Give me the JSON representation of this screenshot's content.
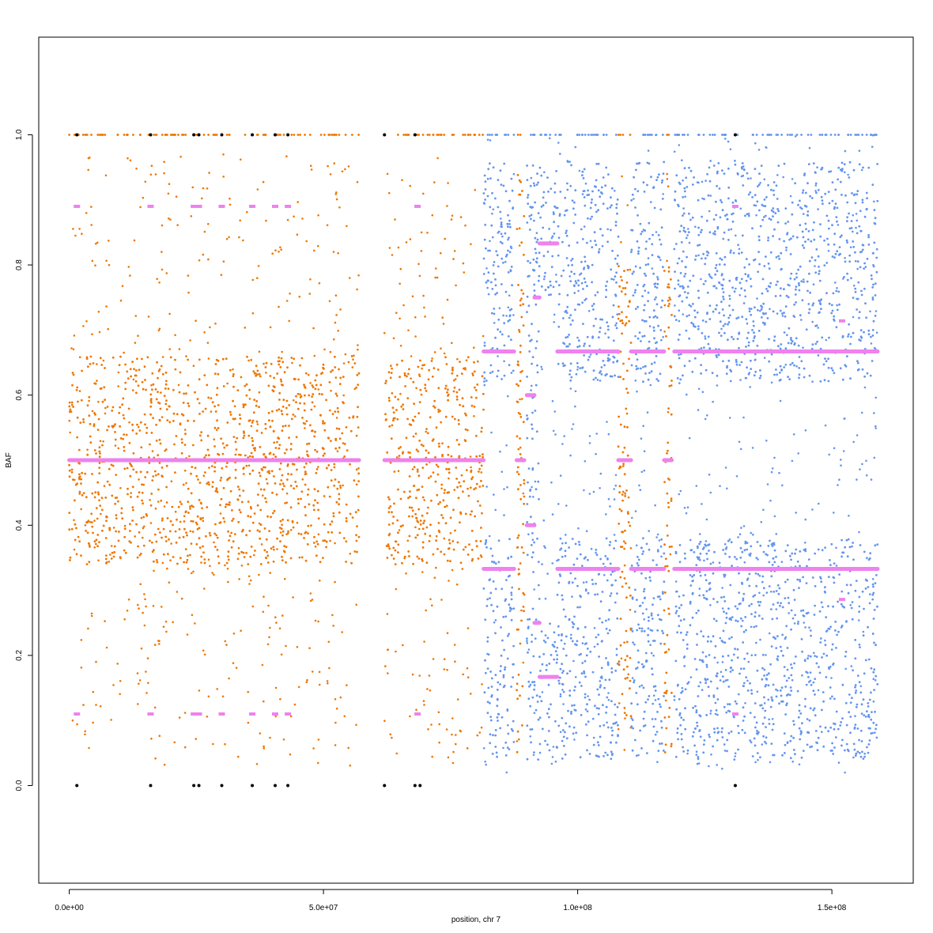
{
  "chart_data": {
    "type": "scatter",
    "title": "",
    "xlabel": "position, chr 7",
    "ylabel": "BAF",
    "xlim": [
      -6000000,
      166000000
    ],
    "ylim": [
      -0.15,
      1.15
    ],
    "x_ticks": [
      0,
      50000000,
      100000000,
      150000000
    ],
    "x_tick_labels": [
      "0.0e+00",
      "5.0e+07",
      "1.0e+08",
      "1.5e+08"
    ],
    "y_ticks": [
      0.0,
      0.2,
      0.4,
      0.6,
      0.8,
      1.0
    ],
    "y_tick_labels": [
      "0.0",
      "0.2",
      "0.4",
      "0.6",
      "0.8",
      "1.0"
    ],
    "grid": false,
    "legend": "none",
    "colors": {
      "balanced": "#ee7700",
      "imbalanced": "#6495ed",
      "segment": "#ee82ee",
      "homozygous": "#000000"
    },
    "series": [
      {
        "color": "balanced",
        "regions": [
          {
            "x": [
              0,
              57000000
            ],
            "bands": [
              [
                0.34,
                0.66
              ]
            ],
            "noise": [
              0.03,
              0.97
            ]
          },
          {
            "x": [
              62000000,
              81500000
            ],
            "bands": [
              [
                0.34,
                0.66
              ]
            ],
            "noise": [
              0.03,
              0.97
            ]
          },
          {
            "x": [
              88000000,
              89500000
            ],
            "bands": [
              [
                0.05,
                0.95
              ]
            ],
            "noise": [
              0.05,
              0.95
            ]
          },
          {
            "x": [
              108000000,
              110500000
            ],
            "bands": [
              [
                0.1,
                0.8
              ]
            ],
            "noise": [
              0.05,
              0.95
            ]
          },
          {
            "x": [
              117000000,
              118500000
            ],
            "bands": [
              [
                0.05,
                0.8
              ]
            ],
            "noise": [
              0.05,
              0.95
            ]
          }
        ]
      },
      {
        "color": "imbalanced",
        "regions": [
          {
            "x": [
              81500000,
              87500000
            ],
            "bands": [
              [
                0.04,
                0.38
              ],
              [
                0.62,
                0.96
              ]
            ],
            "noise": [
              0.02,
              1.0
            ]
          },
          {
            "x": [
              90000000,
              92500000
            ],
            "bands": [
              [
                0.04,
                0.96
              ]
            ],
            "noise": [
              0.02,
              1.0
            ]
          },
          {
            "x": [
              92500000,
              96000000
            ],
            "bands": [
              [
                0.05,
                0.25
              ],
              [
                0.75,
                0.95
              ]
            ],
            "noise": [
              0.02,
              1.0
            ]
          },
          {
            "x": [
              96000000,
              108000000
            ],
            "bands": [
              [
                0.04,
                0.38
              ],
              [
                0.62,
                0.96
              ]
            ],
            "noise": [
              0.02,
              1.0
            ]
          },
          {
            "x": [
              110500000,
              117000000
            ],
            "bands": [
              [
                0.04,
                0.38
              ],
              [
                0.62,
                0.96
              ]
            ],
            "noise": [
              0.02,
              1.0
            ]
          },
          {
            "x": [
              119000000,
              159000000
            ],
            "bands": [
              [
                0.04,
                0.38
              ],
              [
                0.62,
                0.96
              ]
            ],
            "noise": [
              0.02,
              1.0
            ]
          }
        ]
      }
    ],
    "segments": [
      {
        "x": [
          0,
          57000000
        ],
        "y": 0.5
      },
      {
        "x": [
          62000000,
          81500000
        ],
        "y": 0.5
      },
      {
        "x": [
          81500000,
          87500000
        ],
        "y": 0.333
      },
      {
        "x": [
          81500000,
          87500000
        ],
        "y": 0.667
      },
      {
        "x": [
          88000000,
          89500000
        ],
        "y": 0.5
      },
      {
        "x": [
          90000000,
          91500000
        ],
        "y": 0.4
      },
      {
        "x": [
          90000000,
          91500000
        ],
        "y": 0.6
      },
      {
        "x": [
          91500000,
          92500000
        ],
        "y": 0.25
      },
      {
        "x": [
          91500000,
          92500000
        ],
        "y": 0.75
      },
      {
        "x": [
          92500000,
          96000000
        ],
        "y": 0.167
      },
      {
        "x": [
          92500000,
          96000000
        ],
        "y": 0.833
      },
      {
        "x": [
          96000000,
          108000000
        ],
        "y": 0.333
      },
      {
        "x": [
          96000000,
          108000000
        ],
        "y": 0.667
      },
      {
        "x": [
          108000000,
          110500000
        ],
        "y": 0.5
      },
      {
        "x": [
          110500000,
          117000000
        ],
        "y": 0.333
      },
      {
        "x": [
          110500000,
          117000000
        ],
        "y": 0.667
      },
      {
        "x": [
          117000000,
          118500000
        ],
        "y": 0.5
      },
      {
        "x": [
          119000000,
          159000000
        ],
        "y": 0.333
      },
      {
        "x": [
          119000000,
          159000000
        ],
        "y": 0.667
      }
    ],
    "extra_segment_points": [
      {
        "x": 1500000,
        "y": 0.89
      },
      {
        "x": 1500000,
        "y": 0.11
      },
      {
        "x": 16000000,
        "y": 0.89
      },
      {
        "x": 16000000,
        "y": 0.11
      },
      {
        "x": 24500000,
        "y": 0.89
      },
      {
        "x": 24500000,
        "y": 0.11
      },
      {
        "x": 25500000,
        "y": 0.89
      },
      {
        "x": 25500000,
        "y": 0.11
      },
      {
        "x": 30000000,
        "y": 0.89
      },
      {
        "x": 30000000,
        "y": 0.11
      },
      {
        "x": 36000000,
        "y": 0.89
      },
      {
        "x": 36000000,
        "y": 0.11
      },
      {
        "x": 40500000,
        "y": 0.89
      },
      {
        "x": 40500000,
        "y": 0.11
      },
      {
        "x": 43000000,
        "y": 0.89
      },
      {
        "x": 43000000,
        "y": 0.11
      },
      {
        "x": 68500000,
        "y": 0.89
      },
      {
        "x": 68500000,
        "y": 0.11
      },
      {
        "x": 131000000,
        "y": 0.89
      },
      {
        "x": 131000000,
        "y": 0.11
      },
      {
        "x": 152000000,
        "y": 0.714
      },
      {
        "x": 152000000,
        "y": 0.286
      }
    ],
    "homozygous_points": [
      {
        "x": 1500000,
        "y": 0.0
      },
      {
        "x": 16000000,
        "y": 0.0
      },
      {
        "x": 24500000,
        "y": 0.0
      },
      {
        "x": 25500000,
        "y": 0.0
      },
      {
        "x": 30000000,
        "y": 0.0
      },
      {
        "x": 36000000,
        "y": 0.0
      },
      {
        "x": 40500000,
        "y": 0.0
      },
      {
        "x": 43000000,
        "y": 0.0
      },
      {
        "x": 62000000,
        "y": 0.0
      },
      {
        "x": 68000000,
        "y": 0.0
      },
      {
        "x": 69000000,
        "y": 0.0
      },
      {
        "x": 131000000,
        "y": 0.0
      },
      {
        "x": 1500000,
        "y": 1.0
      },
      {
        "x": 16000000,
        "y": 1.0
      },
      {
        "x": 24500000,
        "y": 1.0
      },
      {
        "x": 25500000,
        "y": 1.0
      },
      {
        "x": 30000000,
        "y": 1.0
      },
      {
        "x": 36000000,
        "y": 1.0
      },
      {
        "x": 40500000,
        "y": 1.0
      },
      {
        "x": 43000000,
        "y": 1.0
      },
      {
        "x": 62000000,
        "y": 1.0
      },
      {
        "x": 68000000,
        "y": 1.0
      },
      {
        "x": 131000000,
        "y": 1.0
      }
    ]
  }
}
